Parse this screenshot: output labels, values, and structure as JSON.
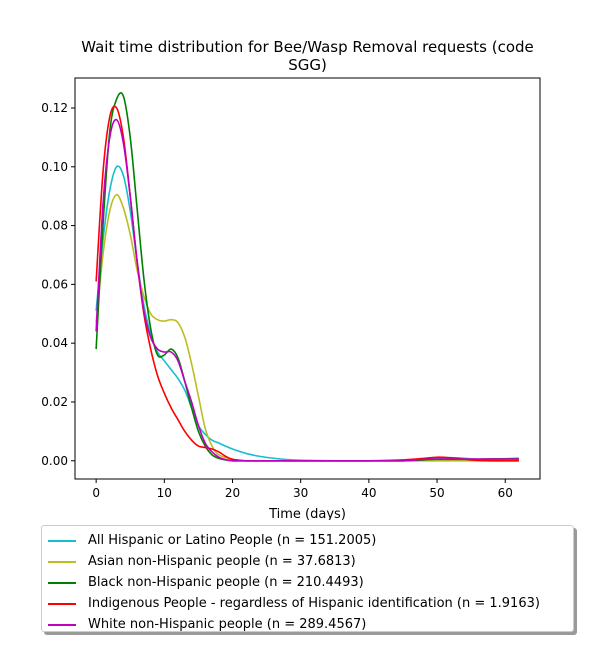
{
  "chart_data": {
    "type": "line",
    "title": "Wait time distribution  for Bee/Wasp Removal  requests (code SGG)",
    "title_lines": [
      "Wait time distribution  for Bee/Wasp Removal  requests (code",
      "SGG)"
    ],
    "xlabel": "Time (days)",
    "ylabel": "",
    "xlim": [
      -3.1,
      65.1
    ],
    "ylim": [
      -0.0062,
      0.1302
    ],
    "x_ticks": [
      0,
      10,
      20,
      30,
      40,
      50,
      60
    ],
    "x_tick_labels": [
      "0",
      "10",
      "20",
      "30",
      "40",
      "50",
      "60"
    ],
    "y_ticks": [
      0.0,
      0.02,
      0.04,
      0.06,
      0.08,
      0.1,
      0.12
    ],
    "y_tick_labels": [
      "0.00",
      "0.02",
      "0.04",
      "0.06",
      "0.08",
      "0.10",
      "0.12"
    ],
    "grid": false,
    "legend_position": "below plot",
    "series": [
      {
        "name": "All Hispanic or Latino People (n = 151.2005)",
        "color": "#17becf",
        "x": [
          0,
          1,
          2,
          3,
          4,
          5,
          6,
          7,
          8,
          9,
          10,
          11,
          12,
          13,
          14,
          15,
          16,
          17,
          18,
          20,
          22,
          24,
          27,
          30,
          35,
          40,
          45,
          48,
          50,
          53,
          56,
          59,
          62
        ],
        "y": [
          0.051,
          0.075,
          0.092,
          0.1,
          0.097,
          0.085,
          0.068,
          0.053,
          0.043,
          0.037,
          0.034,
          0.031,
          0.028,
          0.024,
          0.018,
          0.012,
          0.009,
          0.007,
          0.006,
          0.004,
          0.0025,
          0.0015,
          0.0006,
          0.0002,
          0.0,
          0.0,
          0.0,
          0.0005,
          0.001,
          0.001,
          0.0005,
          0.0005,
          0.0004
        ]
      },
      {
        "name": "Asian non-Hispanic people (n = 37.6813)",
        "color": "#bcbd22",
        "x": [
          0,
          1,
          2,
          3,
          4,
          5,
          6,
          7,
          8,
          9,
          10,
          11,
          12,
          13,
          14,
          15,
          16,
          17,
          18,
          20,
          22,
          25,
          30,
          40,
          50,
          62
        ],
        "y": [
          0.047,
          0.07,
          0.085,
          0.0905,
          0.086,
          0.077,
          0.065,
          0.056,
          0.05,
          0.048,
          0.0475,
          0.048,
          0.047,
          0.042,
          0.033,
          0.022,
          0.011,
          0.005,
          0.002,
          0.0005,
          0.0,
          0.0,
          0.0,
          0.0,
          0.0,
          0.0
        ]
      },
      {
        "name": "Black non-Hispanic people (n = 210.4493)",
        "color": "#008000",
        "x": [
          0,
          1,
          2,
          3,
          4,
          5,
          6,
          7,
          8,
          9,
          10,
          11,
          12,
          13,
          14,
          15,
          16,
          17,
          18,
          19,
          20,
          22,
          25,
          30,
          40,
          45,
          48,
          50,
          55,
          62
        ],
        "y": [
          0.038,
          0.08,
          0.112,
          0.123,
          0.124,
          0.11,
          0.086,
          0.062,
          0.045,
          0.036,
          0.036,
          0.038,
          0.035,
          0.027,
          0.018,
          0.01,
          0.005,
          0.002,
          0.0008,
          0.0003,
          0.0,
          0.0,
          0.0,
          0.0,
          0.0,
          0.0,
          0.0003,
          0.0005,
          0.0005,
          0.0008
        ]
      },
      {
        "name": "Indigenous People - regardless of Hispanic identification (n = 1.9163)",
        "color": "#ff0000",
        "x": [
          0,
          1,
          2,
          3,
          4,
          5,
          6,
          7,
          8,
          9,
          10,
          11,
          12,
          13,
          14,
          15,
          16,
          17,
          18,
          19,
          20,
          22,
          25,
          30,
          40,
          45,
          48,
          50,
          52,
          55,
          58,
          62
        ],
        "y": [
          0.061,
          0.098,
          0.117,
          0.12,
          0.11,
          0.09,
          0.068,
          0.05,
          0.038,
          0.029,
          0.023,
          0.018,
          0.014,
          0.01,
          0.007,
          0.005,
          0.0045,
          0.004,
          0.003,
          0.0015,
          0.0005,
          0.0,
          0.0,
          0.0,
          0.0,
          0.0003,
          0.0008,
          0.0012,
          0.001,
          0.0003,
          0.0,
          0.0
        ]
      },
      {
        "name": "White non-Hispanic people (n = 289.4567)",
        "color": "#bf00bf",
        "x": [
          0,
          1,
          2,
          3,
          4,
          5,
          6,
          7,
          8,
          9,
          10,
          11,
          12,
          13,
          14,
          15,
          16,
          17,
          18,
          19,
          20,
          22,
          25,
          30,
          40,
          45,
          48,
          50,
          55,
          62
        ],
        "y": [
          0.044,
          0.087,
          0.11,
          0.116,
          0.108,
          0.09,
          0.068,
          0.051,
          0.042,
          0.038,
          0.037,
          0.037,
          0.034,
          0.027,
          0.02,
          0.012,
          0.006,
          0.003,
          0.0012,
          0.0004,
          0.0,
          0.0,
          0.0,
          0.0,
          0.0,
          0.0,
          0.0005,
          0.0006,
          0.0006,
          0.0006
        ]
      }
    ]
  }
}
